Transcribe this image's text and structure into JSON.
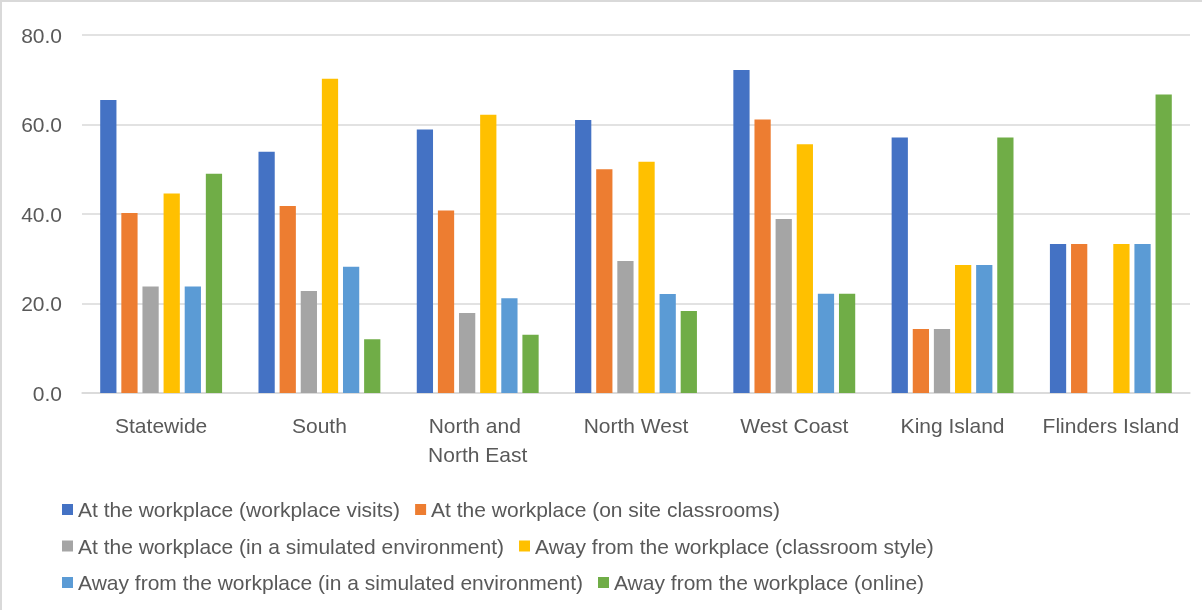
{
  "chart_data": {
    "type": "bar",
    "categories": [
      "Statewide",
      "South",
      "North and North East",
      "North West",
      "West Coast",
      "King Island",
      "Flinders Island"
    ],
    "series": [
      {
        "name": "At the workplace (workplace visits)",
        "color": "#4472c4",
        "values": [
          65.5,
          53.9,
          58.9,
          61.0,
          72.2,
          57.1,
          33.3
        ]
      },
      {
        "name": "At the workplace (on site classrooms)",
        "color": "#ed7d31",
        "values": [
          40.2,
          41.8,
          40.8,
          50.0,
          61.1,
          14.3,
          33.3
        ]
      },
      {
        "name": "At the workplace (in a simulated environment)",
        "color": "#a5a5a5",
        "values": [
          23.8,
          22.8,
          17.9,
          29.5,
          38.9,
          14.3,
          null
        ]
      },
      {
        "name": "Away from the workplace (classroom style)",
        "color": "#ffc000",
        "values": [
          44.6,
          70.2,
          62.2,
          51.7,
          55.6,
          28.6,
          33.3
        ]
      },
      {
        "name": "Away from the workplace (in a simulated environment)",
        "color": "#5b9bd5",
        "values": [
          23.8,
          28.2,
          21.2,
          22.1,
          22.2,
          28.6,
          33.3
        ]
      },
      {
        "name": "Away from the workplace (online)",
        "color": "#70ad47",
        "values": [
          49.0,
          12.0,
          13.0,
          18.3,
          22.2,
          57.1,
          66.7
        ]
      }
    ],
    "ylim": [
      0,
      80
    ],
    "yticks": [
      {
        "value": 0,
        "label": "0.0"
      },
      {
        "value": 20,
        "label": "20.0"
      },
      {
        "value": 40,
        "label": "40.0"
      },
      {
        "value": 60,
        "label": "60.0"
      },
      {
        "value": 80,
        "label": "80.0"
      }
    ],
    "grid": "y",
    "legend": "bottom"
  }
}
